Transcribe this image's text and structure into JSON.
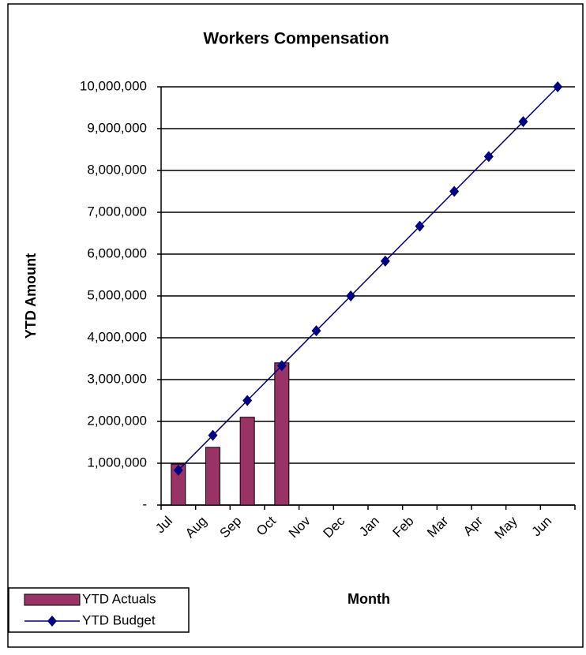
{
  "chart_data": {
    "type": "bar+line",
    "title": "Workers Compensation",
    "x_label": "Month",
    "y_label": "YTD Amount",
    "categories": [
      "Jul",
      "Aug",
      "Sep",
      "Oct",
      "Nov",
      "Dec",
      "Jan",
      "Feb",
      "Mar",
      "Apr",
      "May",
      "Jun"
    ],
    "series": [
      {
        "name": "YTD Actuals",
        "type": "bar",
        "color": "#993366",
        "values": [
          980000,
          1380000,
          2100000,
          3400000,
          null,
          null,
          null,
          null,
          null,
          null,
          null,
          null
        ]
      },
      {
        "name": "YTD Budget",
        "type": "line",
        "color": "#000080",
        "values": [
          833333,
          1666667,
          2500000,
          3333333,
          4166667,
          5000000,
          5833333,
          6666667,
          7500000,
          8333333,
          9166667,
          10000000
        ]
      }
    ],
    "ylim": [
      0,
      10000000
    ],
    "yticks": [
      {
        "value": 0,
        "label": "-"
      },
      {
        "value": 1000000,
        "label": "1,000,000"
      },
      {
        "value": 2000000,
        "label": "2,000,000"
      },
      {
        "value": 3000000,
        "label": "3,000,000"
      },
      {
        "value": 4000000,
        "label": "4,000,000"
      },
      {
        "value": 5000000,
        "label": "5,000,000"
      },
      {
        "value": 6000000,
        "label": "6,000,000"
      },
      {
        "value": 7000000,
        "label": "7,000,000"
      },
      {
        "value": 8000000,
        "label": "8,000,000"
      },
      {
        "value": 9000000,
        "label": "9,000,000"
      },
      {
        "value": 10000000,
        "label": "10,000,000"
      }
    ],
    "grid": true,
    "legend": "bottom-left"
  }
}
